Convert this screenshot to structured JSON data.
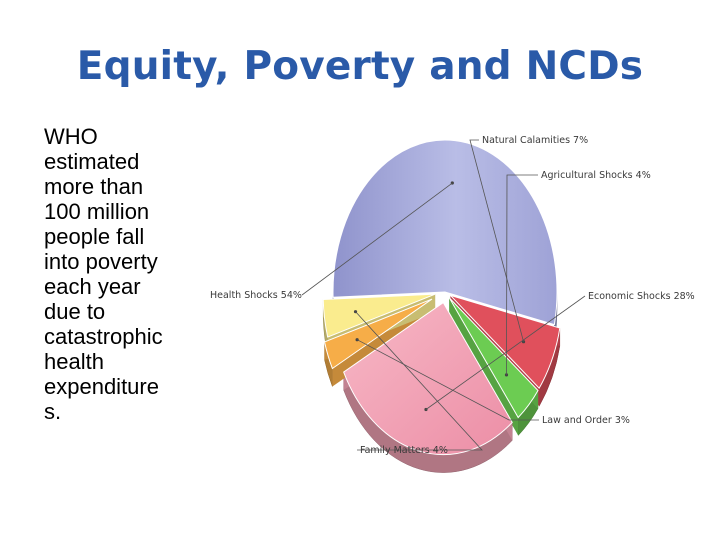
{
  "title": "Equity, Poverty and NCDs",
  "body_lines": [
    "WHO",
    "estimated",
    "more than",
    "100 million",
    "people fall",
    "into poverty",
    "each year",
    "due to",
    "catastrophic",
    "health",
    "expenditure",
    "s."
  ],
  "colors": {
    "title": "#2a5aa8",
    "Health Shocks": "#a3a8d8",
    "Natural Calamities": "#e0505c",
    "Agricultural Shocks": "#6ccc52",
    "Economic Shocks": "#f4a4b6",
    "Law and Order": "#f6ad48",
    "Family Matters": "#faec8e"
  },
  "chart_data": {
    "type": "pie",
    "three_d": true,
    "slices": [
      {
        "label": "Health Shocks 54%",
        "name": "Health Shocks",
        "value": 54
      },
      {
        "label": "Natural Calamities 7%",
        "name": "Natural Calamities",
        "value": 7
      },
      {
        "label": "Agricultural Shocks 4%",
        "name": "Agricultural Shocks",
        "value": 4
      },
      {
        "label": "Economic Shocks 28%",
        "name": "Economic Shocks",
        "value": 28
      },
      {
        "label": "Law and Order 3%",
        "name": "Law and Order",
        "value": 3
      },
      {
        "label": "Family Matters 4%",
        "name": "Family Matters",
        "value": 4
      }
    ]
  }
}
